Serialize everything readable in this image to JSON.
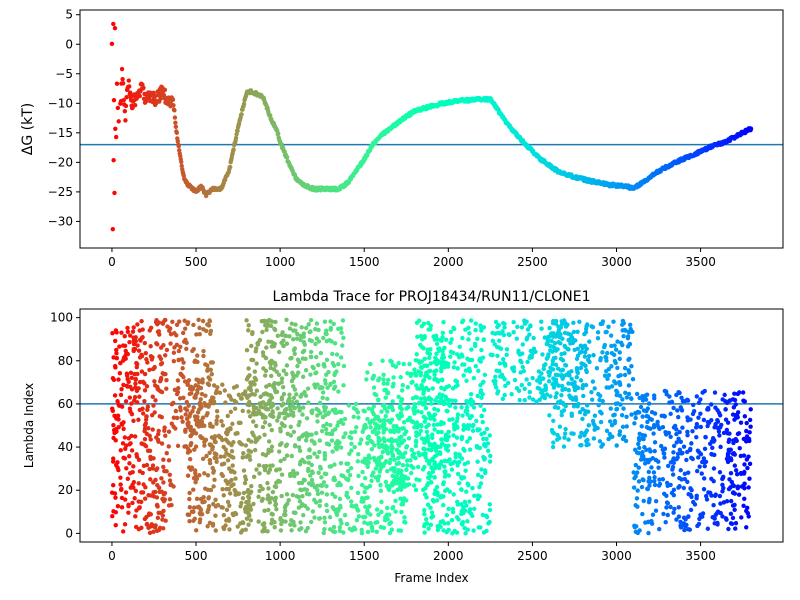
{
  "chart_data": [
    {
      "type": "scatter",
      "title": "",
      "xlabel": "",
      "ylabel": "ΔG (kT)",
      "xlim": [
        -190,
        3990
      ],
      "ylim": [
        -34.5,
        5.8
      ],
      "xticks": [
        0,
        500,
        1000,
        1500,
        2000,
        2500,
        3000,
        3500
      ],
      "yticks": [
        5,
        0,
        -5,
        -10,
        -15,
        -20,
        -25,
        -30
      ],
      "grid": false,
      "hline": -17,
      "colormap": "rainbow (red at frame 0 → violet at last frame)",
      "series": [
        {
          "x": [
            0,
            5,
            8,
            10,
            12,
            15,
            18,
            20,
            25,
            30,
            35,
            40,
            50,
            60,
            70,
            80,
            90,
            100,
            120,
            150,
            175,
            200,
            230,
            260,
            300,
            330,
            360,
            380,
            400,
            430,
            460,
            500,
            530,
            560,
            600,
            650,
            700,
            750,
            800,
            830,
            870,
            900,
            950,
            980,
            1000,
            1050,
            1100,
            1150,
            1200,
            1250,
            1300,
            1350,
            1400,
            1450,
            1500,
            1550,
            1600,
            1700,
            1800,
            1900,
            2000,
            2050,
            2100,
            2200,
            2250,
            2280,
            2350,
            2450,
            2550,
            2650,
            2750,
            2850,
            2950,
            3050,
            3100,
            3150,
            3250,
            3350,
            3450,
            3550,
            3650,
            3750,
            3800
          ],
          "y": [
            0,
            -32.2,
            3.2,
            -19.7,
            -9.8,
            -25,
            3.3,
            -14,
            -16,
            -6,
            -10,
            -13,
            -11,
            -4.5,
            -9,
            -12,
            -8,
            -7,
            -10,
            -9,
            -7.5,
            -9,
            -8.5,
            -9.5,
            -8,
            -9.5,
            -9.5,
            -14,
            -18,
            -23,
            -24,
            -25,
            -24,
            -25.5,
            -24.5,
            -24.5,
            -21,
            -14,
            -8.3,
            -8,
            -8.5,
            -9,
            -13,
            -14.5,
            -16.5,
            -20,
            -23,
            -24,
            -24.5,
            -24.5,
            -24.5,
            -24.5,
            -23.5,
            -21.5,
            -19.5,
            -17,
            -15.5,
            -13.2,
            -11.3,
            -10.5,
            -9.8,
            -9.6,
            -9.5,
            -9.3,
            -9.3,
            -10.5,
            -13.5,
            -16.7,
            -19.5,
            -21.5,
            -22.5,
            -23.2,
            -23.8,
            -24,
            -24.4,
            -23.5,
            -21.5,
            -20,
            -18.8,
            -17.5,
            -16.5,
            -15,
            -14.3
          ]
        }
      ]
    },
    {
      "type": "scatter",
      "title": "Lambda Trace for PROJ18434/RUN11/CLONE1",
      "xlabel": "Frame Index",
      "ylabel": "Lambda Index",
      "xlim": [
        -190,
        3990
      ],
      "ylim": [
        -4,
        104
      ],
      "xticks": [
        0,
        500,
        1000,
        1500,
        2000,
        2500,
        3000,
        3500
      ],
      "yticks": [
        0,
        20,
        40,
        60,
        80,
        100
      ],
      "grid": false,
      "hline": 60,
      "colormap": "rainbow (red at frame 0 → violet at last frame)",
      "density_regions": [
        {
          "x": [
            0,
            100
          ],
          "y": [
            0,
            97
          ]
        },
        {
          "x": [
            100,
            370
          ],
          "y": [
            0,
            99
          ]
        },
        {
          "x": [
            370,
            600
          ],
          "y": [
            40,
            99
          ]
        },
        {
          "x": [
            450,
            1000
          ],
          "y": [
            0,
            70
          ]
        },
        {
          "x": [
            800,
            1380
          ],
          "y": [
            55,
            99
          ]
        },
        {
          "x": [
            1000,
            1380
          ],
          "y": [
            0,
            60
          ]
        },
        {
          "x": [
            1380,
            1750
          ],
          "y": [
            0,
            60
          ]
        },
        {
          "x": [
            1500,
            2000
          ],
          "y": [
            20,
            80
          ]
        },
        {
          "x": [
            1800,
            2220
          ],
          "y": [
            50,
            99
          ]
        },
        {
          "x": [
            1850,
            2250
          ],
          "y": [
            0,
            50
          ]
        },
        {
          "x": [
            2250,
            2700
          ],
          "y": [
            60,
            99
          ]
        },
        {
          "x": [
            2600,
            3100
          ],
          "y": [
            40,
            99
          ]
        },
        {
          "x": [
            3100,
            3800
          ],
          "y": [
            0,
            66
          ]
        }
      ]
    }
  ]
}
